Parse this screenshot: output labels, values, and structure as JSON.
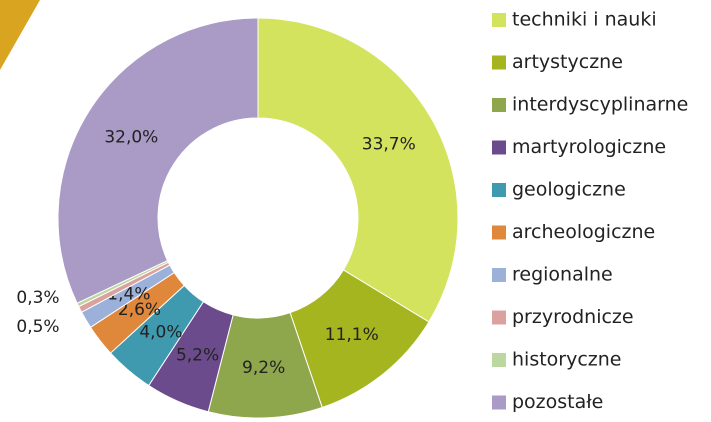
{
  "chart_data": {
    "type": "donut",
    "categories": [
      "techniki i nauki",
      "artystyczne",
      "interdyscyplinarne",
      "martyrologiczne",
      "geologiczne",
      "archeologiczne",
      "regionalne",
      "przyrodnicze",
      "historyczne",
      "pozostałe"
    ],
    "values": [
      33.7,
      11.1,
      9.2,
      5.2,
      4.0,
      2.6,
      1.4,
      0.5,
      0.3,
      32.0
    ],
    "value_labels": [
      "33,7%",
      "11,1%",
      "9,2%",
      "5,2%",
      "4,0%",
      "2,6%",
      "1,4%",
      "0,5%",
      "0,3%",
      "32,0%"
    ],
    "colors": [
      "#d4e35e",
      "#a4b51f",
      "#8ea64c",
      "#6b4b8c",
      "#3f9aaf",
      "#df873a",
      "#9bb1d9",
      "#dba19f",
      "#bcd79f",
      "#a99bc6"
    ],
    "legend": "right"
  }
}
